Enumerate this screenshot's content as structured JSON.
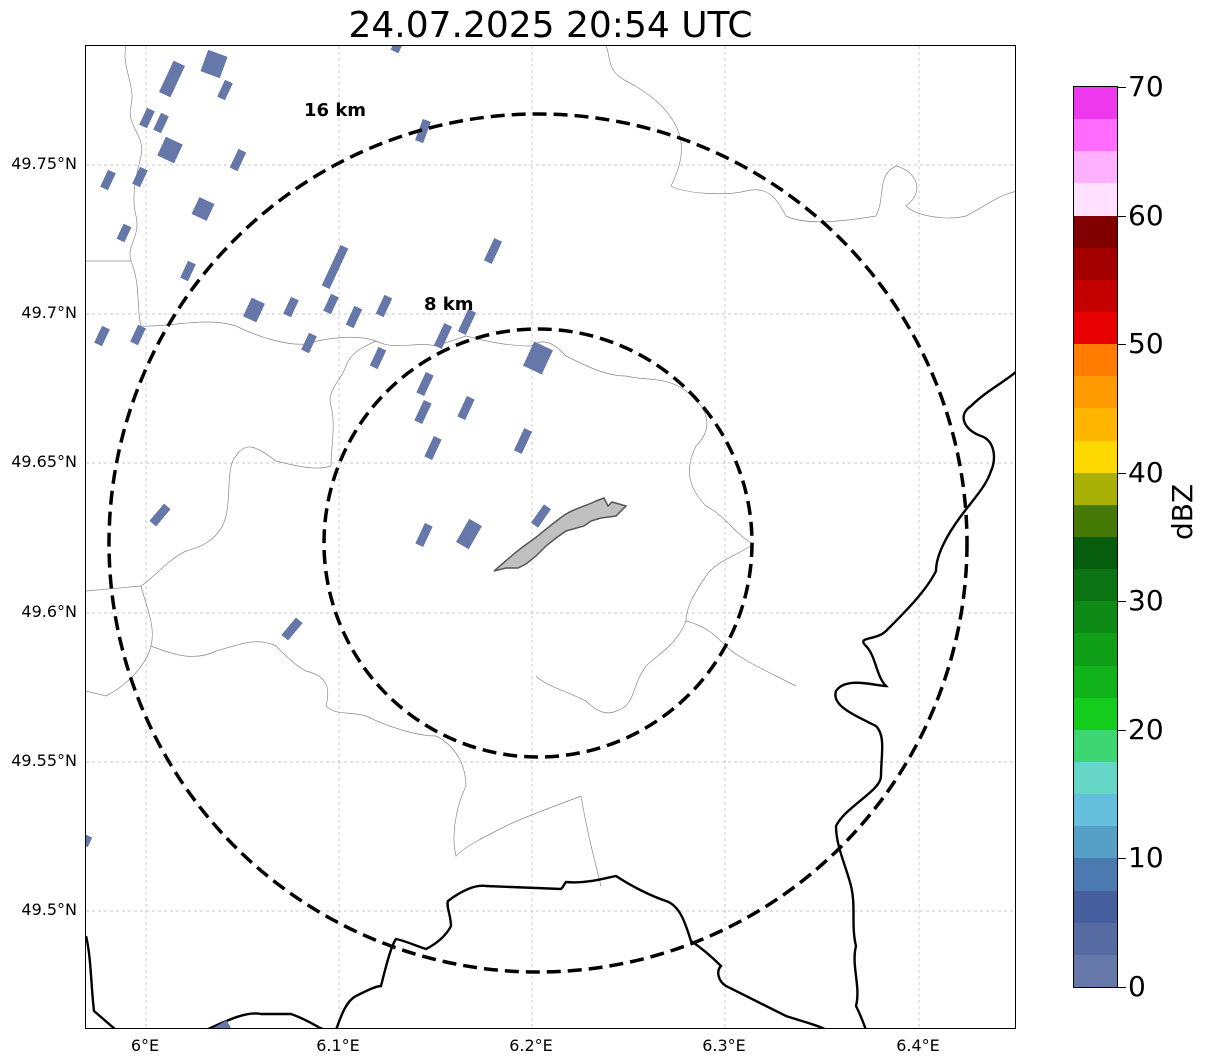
{
  "title": "24.07.2025 20:54 UTC",
  "map": {
    "latitude_labels": [
      "49.75°N",
      "49.7°N",
      "49.65°N",
      "49.6°N",
      "49.55°N",
      "49.5°N"
    ],
    "longitude_labels": [
      "6°E",
      "6.1°E",
      "6.2°E",
      "6.3°E",
      "6.4°E"
    ],
    "range_rings": [
      {
        "label": "8 km",
        "radius_km": 8
      },
      {
        "label": "16 km",
        "radius_km": 16
      }
    ],
    "gridlines": true,
    "echo_color": "#6677aa",
    "city_fill_color": "#c0c0c0",
    "border_color": "#000000"
  },
  "colorbar": {
    "label": "dBZ",
    "min": 0,
    "max": 70,
    "step": 2.5,
    "tick_labels": [
      "0",
      "10",
      "20",
      "30",
      "40",
      "50",
      "60",
      "70"
    ],
    "colors": [
      "#6677aa",
      "#566ba2",
      "#455f9f",
      "#4a7ab0",
      "#56a0c8",
      "#64c0dd",
      "#66d6c6",
      "#3dd673",
      "#14cc1c",
      "#10b41a",
      "#0f9f17",
      "#0d8a15",
      "#0b7313",
      "#075d0e",
      "#457a06",
      "#aab106",
      "#ffd800",
      "#ffb400",
      "#ff9a00",
      "#ff7c00",
      "#e80000",
      "#c40000",
      "#a50000",
      "#800000",
      "#ffe0ff",
      "#ffb0ff",
      "#ff6cff",
      "#ee38ee"
    ]
  }
}
